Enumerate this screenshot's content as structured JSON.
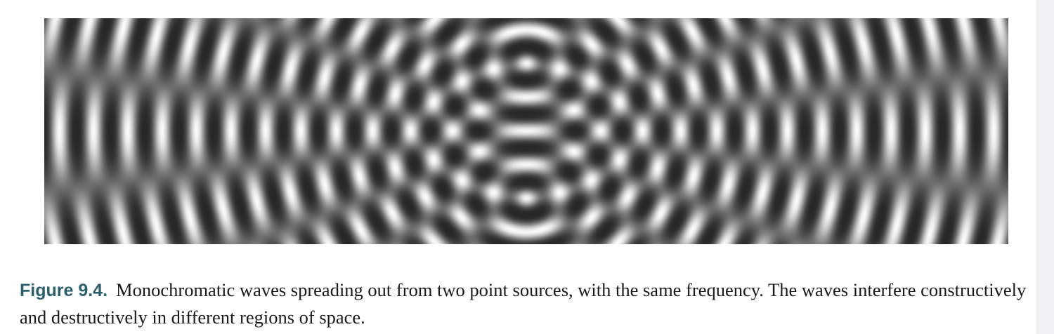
{
  "figure": {
    "label": "Figure 9.4.",
    "caption_text": "Monochromatic waves spreading out from two point sources, with the same frequency. The waves interfere constructively and destructively in different regions of space."
  },
  "colors": {
    "caption_label": "#2a5f6c",
    "caption_text": "#1a1a1a",
    "margin_strip": "#f2f2f4"
  }
}
